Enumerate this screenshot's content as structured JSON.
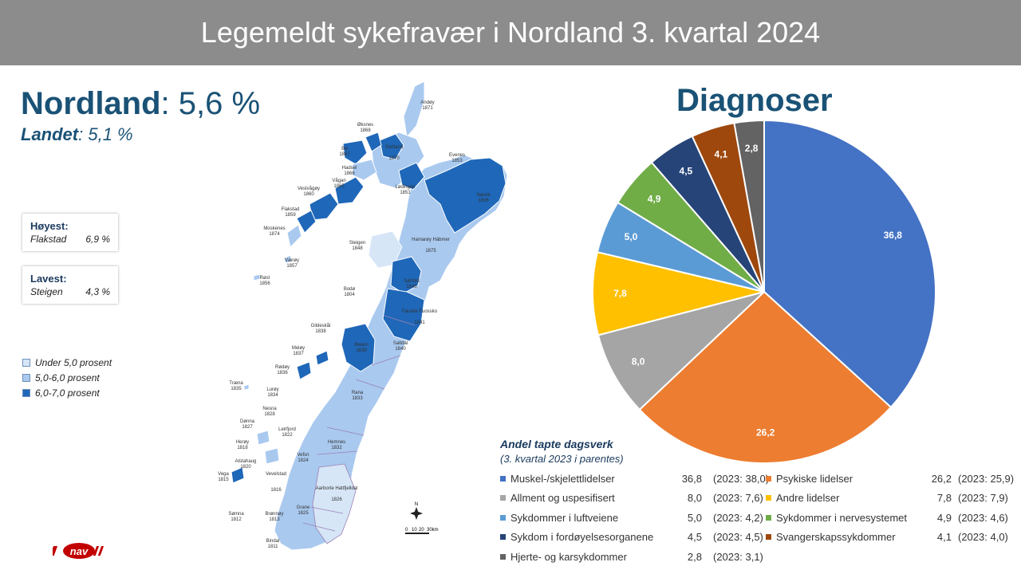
{
  "header": {
    "title": "Legemeldt sykefravær i Nordland 3. kvartal 2024"
  },
  "summary": {
    "region_name": "Nordland",
    "region_value": ": 5,6 %",
    "country_name": "Landet",
    "country_value": ": 5,1 %"
  },
  "highest": {
    "heading": "Høyest:",
    "municipality": "Flakstad",
    "value": "6,9 %"
  },
  "lowest": {
    "heading": "Lavest:",
    "municipality": "Steigen",
    "value": "4,3 %"
  },
  "map_legend": [
    {
      "label": "Under 5,0 prosent",
      "color": "#d6e6f7"
    },
    {
      "label": "5,0-6,0 prosent",
      "color": "#a9c9ef"
    },
    {
      "label": "6,0-7,0 prosent",
      "color": "#1f67b8"
    }
  ],
  "map_labels": [
    {
      "name": "Andøy",
      "code": "1871"
    },
    {
      "name": "Øksnes",
      "code": "1868"
    },
    {
      "name": "Bø",
      "code": "1867"
    },
    {
      "name": "Sortland",
      "code": "1870"
    },
    {
      "name": "Hadsel",
      "code": "1866"
    },
    {
      "name": "Evenes",
      "code": "1853"
    },
    {
      "name": "Vågan",
      "code": "1865"
    },
    {
      "name": "Vestvågøy",
      "code": "1860"
    },
    {
      "name": "Lødingen",
      "code": "1851"
    },
    {
      "name": "Narvik",
      "code": "1806"
    },
    {
      "name": "Flakstad",
      "code": "1859"
    },
    {
      "name": "Moskenes",
      "code": "1874"
    },
    {
      "name": "Steigen",
      "code": "1848"
    },
    {
      "name": "Hamarøy Hábmer",
      "code": "1875"
    },
    {
      "name": "Værøy",
      "code": "1857"
    },
    {
      "name": "Røst",
      "code": "1856"
    },
    {
      "name": "Sørfold",
      "code": "1845"
    },
    {
      "name": "Bodø",
      "code": "1804"
    },
    {
      "name": "Fauske Fuossko",
      "code": "1841"
    },
    {
      "name": "Gildeskål",
      "code": "1838"
    },
    {
      "name": "Beiarn",
      "code": "1839"
    },
    {
      "name": "Saltdal",
      "code": "1840"
    },
    {
      "name": "Meløy",
      "code": "1837"
    },
    {
      "name": "Rødøy",
      "code": "1836"
    },
    {
      "name": "Træna",
      "code": "1835"
    },
    {
      "name": "Lurøy",
      "code": "1834"
    },
    {
      "name": "Rana",
      "code": "1833"
    },
    {
      "name": "Nesna",
      "code": "1828"
    },
    {
      "name": "Dønna",
      "code": "1827"
    },
    {
      "name": "Leirfjord",
      "code": "1822"
    },
    {
      "name": "Hemnes",
      "code": "1832"
    },
    {
      "name": "Herøy",
      "code": "1818"
    },
    {
      "name": "Vefsn",
      "code": "1824"
    },
    {
      "name": "Alstahaug",
      "code": "1820"
    },
    {
      "name": "Vega",
      "code": "1815"
    },
    {
      "name": "Vevelstad",
      "code": "1816"
    },
    {
      "name": "Aarborte Hattfjelldal",
      "code": "1826"
    },
    {
      "name": "Sømna",
      "code": "1812"
    },
    {
      "name": "Brønnøy",
      "code": "1813"
    },
    {
      "name": "Grane",
      "code": "1825"
    },
    {
      "name": "Bindal",
      "code": "1811"
    }
  ],
  "map_scale": {
    "north": "N",
    "ticks": [
      "0",
      "10",
      "20",
      "30km"
    ]
  },
  "chart_data": {
    "type": "pie",
    "title": "Diagnoser",
    "table_title": "Andel tapte dagsverk",
    "table_subtitle": "(3. kvartal 2023 i parentes)",
    "slices": [
      {
        "label": "Muskel-/skjelettlidelser",
        "value": 36.8,
        "value_text": "36,8",
        "prev_text": "(2023: 38,0)",
        "color": "#4472c4"
      },
      {
        "label": "Psykiske lidelser",
        "value": 26.2,
        "value_text": "26,2",
        "prev_text": "(2023: 25,9)",
        "color": "#ed7d31"
      },
      {
        "label": "Allment og uspesifisert",
        "value": 8.0,
        "value_text": "8,0",
        "prev_text": "(2023: 7,6)",
        "color": "#a5a5a5"
      },
      {
        "label": "Andre lidelser",
        "value": 7.8,
        "value_text": "7,8",
        "prev_text": "(2023: 7,9)",
        "color": "#ffc000"
      },
      {
        "label": "Sykdommer i luftveiene",
        "value": 5.0,
        "value_text": "5,0",
        "prev_text": "(2023: 4,2)",
        "color": "#5b9bd5"
      },
      {
        "label": "Sykdommer i nervesystemet",
        "value": 4.9,
        "value_text": "4,9",
        "prev_text": "(2023: 4,6)",
        "color": "#70ad47"
      },
      {
        "label": "Sykdom i fordøyelsesorganene",
        "value": 4.5,
        "value_text": "4,5",
        "prev_text": "(2023: 4,5)",
        "color": "#264478"
      },
      {
        "label": "Svangerskapssykdommer",
        "value": 4.1,
        "value_text": "4,1",
        "prev_text": "(2023: 4,0)",
        "color": "#9e480e"
      },
      {
        "label": "Hjerte- og karsykdommer",
        "value": 2.8,
        "value_text": "2,8",
        "prev_text": "(2023: 3,1)",
        "color": "#636363"
      }
    ]
  },
  "logo": {
    "text": "nav"
  }
}
